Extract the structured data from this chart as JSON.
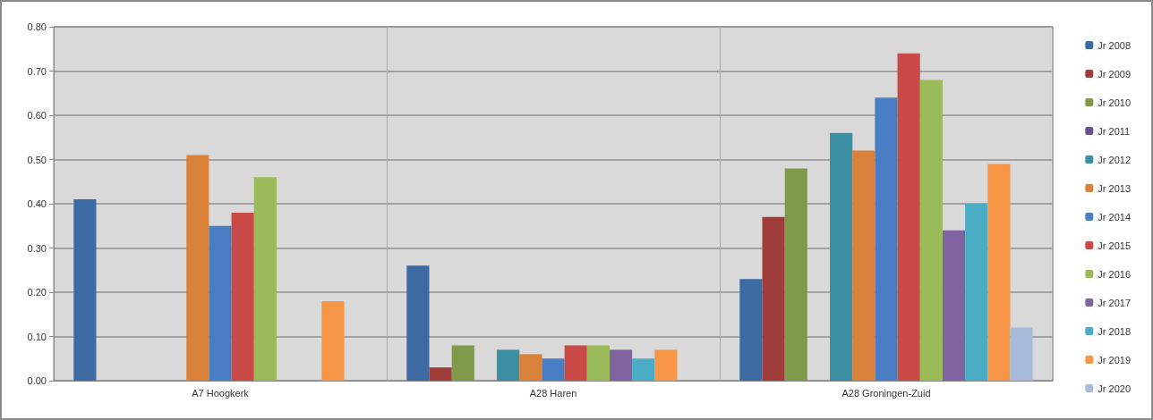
{
  "chart_data": {
    "type": "bar",
    "categories": [
      "A7 Hoogkerk",
      "A28 Haren",
      "A28 Groningen-Zuid"
    ],
    "series": [
      {
        "name": "Jr 2008",
        "color": "#3d6aa2",
        "values": [
          0.41,
          0.26,
          0.23
        ]
      },
      {
        "name": "Jr 2009",
        "color": "#a03c3a",
        "values": [
          null,
          0.03,
          0.37
        ]
      },
      {
        "name": "Jr 2010",
        "color": "#7f9a48",
        "values": [
          null,
          0.08,
          0.48
        ]
      },
      {
        "name": "Jr 2011",
        "color": "#6a4f8e",
        "values": [
          null,
          null,
          null
        ]
      },
      {
        "name": "Jr 2012",
        "color": "#3a8fa3",
        "values": [
          null,
          0.07,
          0.56
        ]
      },
      {
        "name": "Jr 2013",
        "color": "#d9823b",
        "values": [
          0.51,
          0.06,
          0.52
        ]
      },
      {
        "name": "Jr 2014",
        "color": "#4a7ec4",
        "values": [
          0.35,
          0.05,
          0.64
        ]
      },
      {
        "name": "Jr 2015",
        "color": "#c94a47",
        "values": [
          0.38,
          0.08,
          0.74
        ]
      },
      {
        "name": "Jr 2016",
        "color": "#9bbb59",
        "values": [
          0.46,
          0.08,
          0.68
        ]
      },
      {
        "name": "Jr 2017",
        "color": "#8064a2",
        "values": [
          null,
          0.07,
          0.34
        ]
      },
      {
        "name": "Jr 2018",
        "color": "#4bacc6",
        "values": [
          null,
          0.05,
          0.4
        ]
      },
      {
        "name": "Jr 2019",
        "color": "#f79646",
        "values": [
          0.18,
          0.07,
          0.49
        ]
      },
      {
        "name": "Jr 2020",
        "color": "#a9bcdc",
        "values": [
          null,
          null,
          0.12
        ]
      }
    ],
    "ylim": [
      0,
      0.8
    ],
    "yticks": [
      {
        "value": 0,
        "label": "0.00"
      },
      {
        "value": 0.1,
        "label": "0.10"
      },
      {
        "value": 0.2,
        "label": "0.20"
      },
      {
        "value": 0.3,
        "label": "0.30"
      },
      {
        "value": 0.4,
        "label": "0.40"
      },
      {
        "value": 0.5,
        "label": "0.50"
      },
      {
        "value": 0.6,
        "label": "0.60"
      },
      {
        "value": 0.7,
        "label": "0.70"
      },
      {
        "value": 0.8,
        "label": "0.80"
      }
    ],
    "grid": true,
    "legend": "right"
  }
}
